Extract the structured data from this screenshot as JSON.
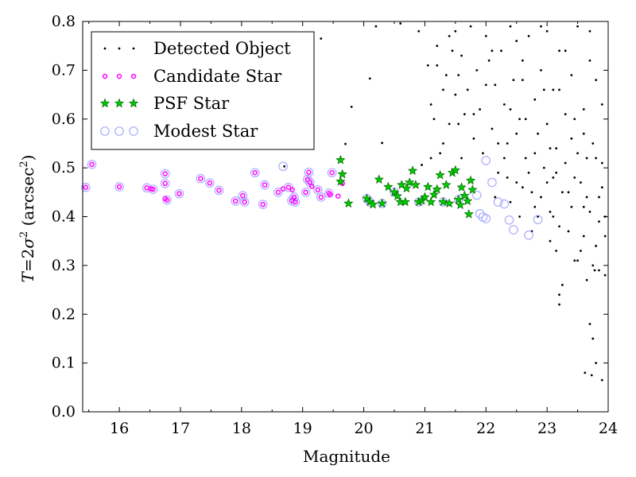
{
  "chart_data": {
    "type": "scatter",
    "xlabel": "Magnitude",
    "ylabel_text": "(arcsec",
    "ylabel_sup": "2",
    "ylabel_close": ")",
    "xlim": [
      15.4,
      24
    ],
    "ylim": [
      0.0,
      0.8
    ],
    "x_ticks": [
      16,
      17,
      18,
      19,
      20,
      21,
      22,
      23,
      24
    ],
    "y_ticks": [
      0.0,
      0.1,
      0.2,
      0.3,
      0.4,
      0.5,
      0.6,
      0.7,
      0.8
    ],
    "x_tick_labels": [
      "16",
      "17",
      "18",
      "19",
      "20",
      "21",
      "22",
      "23",
      "24"
    ],
    "y_tick_labels": [
      "0.0",
      "0.1",
      "0.2",
      "0.3",
      "0.4",
      "0.5",
      "0.6",
      "0.7",
      "0.8"
    ],
    "grid": false,
    "legend_position": "top-left",
    "colors": {
      "detected": "#000000",
      "candidate": "#ff00ff",
      "psf_fill": "#00cc00",
      "psf_edge": "#006400",
      "modest": "#aaaaff"
    },
    "series": [
      {
        "name": "Detected Object",
        "marker": "point",
        "points": [
          [
            18.7,
            0.503
          ],
          [
            19.3,
            0.765
          ],
          [
            19.8,
            0.625
          ],
          [
            20.1,
            0.683
          ],
          [
            20.6,
            0.796
          ],
          [
            20.9,
            0.78
          ],
          [
            20.95,
            0.506
          ],
          [
            20.3,
            0.551
          ],
          [
            19.7,
            0.549
          ],
          [
            20.2,
            0.79
          ],
          [
            21.1,
            0.63
          ],
          [
            21.15,
            0.6
          ],
          [
            21.2,
            0.71
          ],
          [
            21.3,
            0.55
          ],
          [
            21.35,
            0.69
          ],
          [
            21.4,
            0.77
          ],
          [
            21.45,
            0.74
          ],
          [
            21.5,
            0.65
          ],
          [
            21.55,
            0.59
          ],
          [
            21.6,
            0.52
          ],
          [
            21.1,
            0.52
          ],
          [
            21.25,
            0.53
          ],
          [
            21.6,
            0.73
          ],
          [
            21.7,
            0.66
          ],
          [
            21.75,
            0.79
          ],
          [
            21.8,
            0.56
          ],
          [
            21.85,
            0.7
          ],
          [
            21.9,
            0.62
          ],
          [
            21.95,
            0.53
          ],
          [
            22.0,
            0.77
          ],
          [
            21.5,
            0.78
          ],
          [
            21.65,
            0.61
          ],
          [
            22.05,
            0.72
          ],
          [
            22.1,
            0.58
          ],
          [
            22.15,
            0.67
          ],
          [
            22.2,
            0.49
          ],
          [
            22.25,
            0.74
          ],
          [
            22.3,
            0.63
          ],
          [
            22.35,
            0.55
          ],
          [
            22.4,
            0.79
          ],
          [
            22.45,
            0.68
          ],
          [
            22.5,
            0.47
          ],
          [
            22.55,
            0.6
          ],
          [
            22.6,
            0.72
          ],
          [
            22.65,
            0.52
          ],
          [
            22.7,
            0.77
          ],
          [
            22.75,
            0.45
          ],
          [
            22.8,
            0.64
          ],
          [
            22.85,
            0.57
          ],
          [
            22.9,
            0.7
          ],
          [
            22.95,
            0.5
          ],
          [
            23.0,
            0.78
          ],
          [
            23.05,
            0.41
          ],
          [
            23.1,
            0.66
          ],
          [
            23.15,
            0.54
          ],
          [
            23.2,
            0.74
          ],
          [
            23.25,
            0.45
          ],
          [
            23.3,
            0.61
          ],
          [
            23.35,
            0.37
          ],
          [
            23.4,
            0.69
          ],
          [
            23.45,
            0.48
          ],
          [
            23.5,
            0.79
          ],
          [
            23.55,
            0.33
          ],
          [
            23.6,
            0.57
          ],
          [
            23.65,
            0.44
          ],
          [
            23.7,
            0.72
          ],
          [
            23.75,
            0.3
          ],
          [
            23.8,
            0.52
          ],
          [
            23.85,
            0.39
          ],
          [
            23.9,
            0.63
          ],
          [
            23.95,
            0.28
          ],
          [
            22.3,
            0.52
          ],
          [
            22.5,
            0.57
          ],
          [
            22.7,
            0.49
          ],
          [
            22.9,
            0.44
          ],
          [
            23.1,
            0.48
          ],
          [
            23.3,
            0.51
          ],
          [
            23.5,
            0.53
          ],
          [
            23.7,
            0.41
          ],
          [
            23.9,
            0.46
          ],
          [
            22.4,
            0.43
          ],
          [
            22.6,
            0.46
          ],
          [
            22.8,
            0.42
          ],
          [
            23.0,
            0.47
          ],
          [
            23.2,
            0.38
          ],
          [
            23.4,
            0.42
          ],
          [
            23.6,
            0.36
          ],
          [
            23.8,
            0.34
          ],
          [
            23.95,
            0.4
          ],
          [
            23.25,
            0.26
          ],
          [
            23.2,
            0.24
          ],
          [
            23.2,
            0.22
          ],
          [
            23.5,
            0.31
          ],
          [
            23.65,
            0.27
          ],
          [
            23.78,
            0.29
          ],
          [
            23.85,
            0.29
          ],
          [
            23.7,
            0.18
          ],
          [
            23.75,
            0.15
          ],
          [
            23.8,
            0.1
          ],
          [
            23.62,
            0.08
          ],
          [
            23.73,
            0.075
          ],
          [
            23.9,
            0.065
          ],
          [
            22.0,
            0.67
          ],
          [
            22.2,
            0.55
          ],
          [
            22.4,
            0.62
          ],
          [
            22.6,
            0.68
          ],
          [
            22.8,
            0.53
          ],
          [
            23.0,
            0.59
          ],
          [
            23.2,
            0.66
          ],
          [
            23.4,
            0.56
          ],
          [
            23.6,
            0.62
          ],
          [
            23.8,
            0.68
          ],
          [
            22.1,
            0.74
          ],
          [
            22.5,
            0.76
          ],
          [
            22.9,
            0.79
          ],
          [
            23.3,
            0.74
          ],
          [
            23.7,
            0.78
          ],
          [
            23.05,
            0.54
          ],
          [
            23.15,
            0.49
          ],
          [
            23.35,
            0.45
          ],
          [
            23.55,
            0.47
          ],
          [
            23.75,
            0.55
          ],
          [
            23.9,
            0.51
          ],
          [
            22.35,
            0.48
          ],
          [
            22.65,
            0.6
          ],
          [
            22.95,
            0.66
          ],
          [
            23.45,
            0.6
          ],
          [
            23.65,
            0.52
          ],
          [
            23.85,
            0.44
          ],
          [
            21.3,
            0.66
          ],
          [
            21.4,
            0.59
          ],
          [
            21.2,
            0.75
          ],
          [
            21.05,
            0.71
          ],
          [
            21.55,
            0.69
          ],
          [
            21.8,
            0.61
          ],
          [
            22.15,
            0.44
          ],
          [
            22.55,
            0.4
          ],
          [
            22.75,
            0.37
          ],
          [
            23.05,
            0.35
          ],
          [
            23.15,
            0.33
          ],
          [
            23.45,
            0.31
          ],
          [
            23.6,
            0.42
          ],
          [
            23.95,
            0.36
          ],
          [
            23.1,
            0.4
          ],
          [
            22.85,
            0.4
          ]
        ]
      },
      {
        "name": "Candidate Star",
        "marker": "ring",
        "points": [
          [
            15.45,
            0.46
          ],
          [
            15.55,
            0.507
          ],
          [
            16.0,
            0.461
          ],
          [
            16.45,
            0.459
          ],
          [
            16.52,
            0.457
          ],
          [
            16.55,
            0.456
          ],
          [
            16.75,
            0.488
          ],
          [
            16.75,
            0.468
          ],
          [
            16.75,
            0.437
          ],
          [
            16.78,
            0.434
          ],
          [
            16.98,
            0.447
          ],
          [
            17.33,
            0.478
          ],
          [
            17.48,
            0.469
          ],
          [
            17.63,
            0.454
          ],
          [
            17.9,
            0.432
          ],
          [
            18.02,
            0.443
          ],
          [
            18.05,
            0.43
          ],
          [
            18.22,
            0.49
          ],
          [
            18.35,
            0.425
          ],
          [
            18.38,
            0.465
          ],
          [
            18.6,
            0.45
          ],
          [
            18.68,
            0.457
          ],
          [
            18.77,
            0.46
          ],
          [
            18.82,
            0.433
          ],
          [
            18.83,
            0.455
          ],
          [
            18.86,
            0.44
          ],
          [
            18.88,
            0.43
          ],
          [
            19.05,
            0.45
          ],
          [
            19.08,
            0.476
          ],
          [
            19.12,
            0.47
          ],
          [
            19.1,
            0.491
          ],
          [
            19.15,
            0.462
          ],
          [
            19.25,
            0.455
          ],
          [
            19.3,
            0.44
          ],
          [
            19.43,
            0.448
          ],
          [
            19.45,
            0.445
          ],
          [
            19.48,
            0.49
          ],
          [
            19.65,
            0.468
          ],
          [
            19.58,
            0.442
          ]
        ]
      },
      {
        "name": "PSF Star",
        "marker": "star",
        "points": [
          [
            19.62,
            0.516
          ],
          [
            19.62,
            0.472
          ],
          [
            19.65,
            0.487
          ],
          [
            19.75,
            0.427
          ],
          [
            20.05,
            0.437
          ],
          [
            20.1,
            0.43
          ],
          [
            20.15,
            0.425
          ],
          [
            20.25,
            0.476
          ],
          [
            20.3,
            0.427
          ],
          [
            20.4,
            0.461
          ],
          [
            20.5,
            0.45
          ],
          [
            20.6,
            0.43
          ],
          [
            20.62,
            0.465
          ],
          [
            20.7,
            0.458
          ],
          [
            20.75,
            0.47
          ],
          [
            20.8,
            0.494
          ],
          [
            20.85,
            0.465
          ],
          [
            20.9,
            0.43
          ],
          [
            20.95,
            0.433
          ],
          [
            21.0,
            0.44
          ],
          [
            21.05,
            0.461
          ],
          [
            21.15,
            0.445
          ],
          [
            21.2,
            0.456
          ],
          [
            21.25,
            0.485
          ],
          [
            21.3,
            0.43
          ],
          [
            21.35,
            0.465
          ],
          [
            21.4,
            0.427
          ],
          [
            21.45,
            0.49
          ],
          [
            21.5,
            0.495
          ],
          [
            21.55,
            0.435
          ],
          [
            21.58,
            0.424
          ],
          [
            21.6,
            0.46
          ],
          [
            21.65,
            0.443
          ],
          [
            21.7,
            0.432
          ],
          [
            21.72,
            0.405
          ],
          [
            21.75,
            0.474
          ],
          [
            21.78,
            0.455
          ],
          [
            20.55,
            0.442
          ],
          [
            20.68,
            0.43
          ],
          [
            21.1,
            0.43
          ]
        ]
      },
      {
        "name": "Modest Star",
        "marker": "circle",
        "points": [
          [
            15.45,
            0.46
          ],
          [
            15.55,
            0.507
          ],
          [
            16.0,
            0.461
          ],
          [
            16.45,
            0.459
          ],
          [
            16.55,
            0.456
          ],
          [
            16.75,
            0.488
          ],
          [
            16.75,
            0.468
          ],
          [
            16.78,
            0.434
          ],
          [
            16.98,
            0.447
          ],
          [
            17.33,
            0.478
          ],
          [
            17.48,
            0.469
          ],
          [
            17.63,
            0.454
          ],
          [
            17.9,
            0.432
          ],
          [
            18.02,
            0.443
          ],
          [
            18.05,
            0.43
          ],
          [
            18.22,
            0.49
          ],
          [
            18.35,
            0.425
          ],
          [
            18.38,
            0.465
          ],
          [
            18.6,
            0.45
          ],
          [
            18.68,
            0.503
          ],
          [
            18.77,
            0.46
          ],
          [
            18.82,
            0.433
          ],
          [
            18.86,
            0.44
          ],
          [
            18.88,
            0.43
          ],
          [
            19.05,
            0.45
          ],
          [
            19.08,
            0.476
          ],
          [
            19.12,
            0.47
          ],
          [
            19.1,
            0.491
          ],
          [
            19.25,
            0.455
          ],
          [
            19.3,
            0.44
          ],
          [
            19.43,
            0.448
          ],
          [
            19.48,
            0.49
          ],
          [
            20.05,
            0.437
          ],
          [
            20.1,
            0.43
          ],
          [
            20.3,
            0.427
          ],
          [
            20.5,
            0.45
          ],
          [
            20.9,
            0.43
          ],
          [
            21.3,
            0.43
          ],
          [
            21.55,
            0.435
          ],
          [
            21.85,
            0.444
          ],
          [
            21.9,
            0.406
          ],
          [
            21.95,
            0.399
          ],
          [
            22.0,
            0.396
          ],
          [
            22.0,
            0.515
          ],
          [
            22.1,
            0.47
          ],
          [
            22.2,
            0.43
          ],
          [
            22.3,
            0.426
          ],
          [
            22.38,
            0.393
          ],
          [
            22.45,
            0.373
          ],
          [
            22.7,
            0.362
          ],
          [
            22.85,
            0.394
          ]
        ]
      }
    ]
  }
}
